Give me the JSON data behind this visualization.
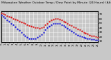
{
  "title": "Milwaukee Weather Outdoor Temp / Dew Point by Minute (24 Hours) (Alternate)",
  "title_fontsize": 3.2,
  "bg_color": "#c8c8c8",
  "plot_bg_color": "#c8c8c8",
  "grid_color": "#ffffff",
  "blue_color": "#0000dd",
  "red_color": "#dd0000",
  "x_min": 0,
  "x_max": 1440,
  "y_min": 8,
  "y_max": 78,
  "y_ticks": [
    10,
    20,
    30,
    40,
    50,
    60,
    70
  ],
  "y_tick_labels": [
    "10",
    "20",
    "30",
    "40",
    "50",
    "60",
    "70"
  ],
  "x_ticks": [
    0,
    60,
    120,
    180,
    240,
    300,
    360,
    420,
    480,
    540,
    600,
    660,
    720,
    780,
    840,
    900,
    960,
    1020,
    1080,
    1140,
    1200,
    1260,
    1320,
    1380,
    1440
  ],
  "temp_x": [
    0,
    30,
    60,
    90,
    120,
    150,
    180,
    210,
    240,
    270,
    300,
    330,
    360,
    390,
    420,
    450,
    480,
    510,
    540,
    570,
    600,
    630,
    660,
    690,
    720,
    750,
    780,
    810,
    840,
    870,
    900,
    930,
    960,
    990,
    1020,
    1050,
    1080,
    1110,
    1140,
    1170,
    1200,
    1230,
    1260,
    1290,
    1320,
    1350,
    1380,
    1410,
    1440
  ],
  "temp_y": [
    73,
    71,
    69,
    67,
    65,
    63,
    61,
    59,
    57,
    55,
    53,
    51,
    49,
    47,
    45,
    43,
    42,
    41,
    40,
    39,
    40,
    42,
    46,
    50,
    54,
    57,
    59,
    60,
    60,
    59,
    57,
    55,
    52,
    50,
    47,
    45,
    42,
    40,
    37,
    35,
    32,
    30,
    28,
    26,
    24,
    22,
    21,
    20,
    19
  ],
  "dew_x": [
    0,
    30,
    60,
    90,
    120,
    150,
    180,
    210,
    240,
    270,
    300,
    330,
    360,
    390,
    420,
    450,
    480,
    510,
    540,
    570,
    600,
    630,
    660,
    690,
    720,
    750,
    780,
    810,
    840,
    870,
    900,
    930,
    960,
    990,
    1020,
    1050,
    1080,
    1110,
    1140,
    1170,
    1200,
    1230,
    1260,
    1290,
    1320,
    1350,
    1380,
    1410,
    1440
  ],
  "dew_y": [
    68,
    65,
    62,
    58,
    54,
    50,
    46,
    42,
    38,
    34,
    29,
    25,
    21,
    18,
    16,
    15,
    15,
    16,
    18,
    21,
    25,
    30,
    35,
    40,
    44,
    47,
    49,
    50,
    50,
    49,
    47,
    45,
    42,
    39,
    36,
    33,
    30,
    27,
    24,
    22,
    20,
    18,
    17,
    16,
    15,
    14,
    14,
    13,
    13
  ],
  "marker_size": 1.2,
  "tick_fontsize": 2.8,
  "x_tick_fontsize": 2.5
}
